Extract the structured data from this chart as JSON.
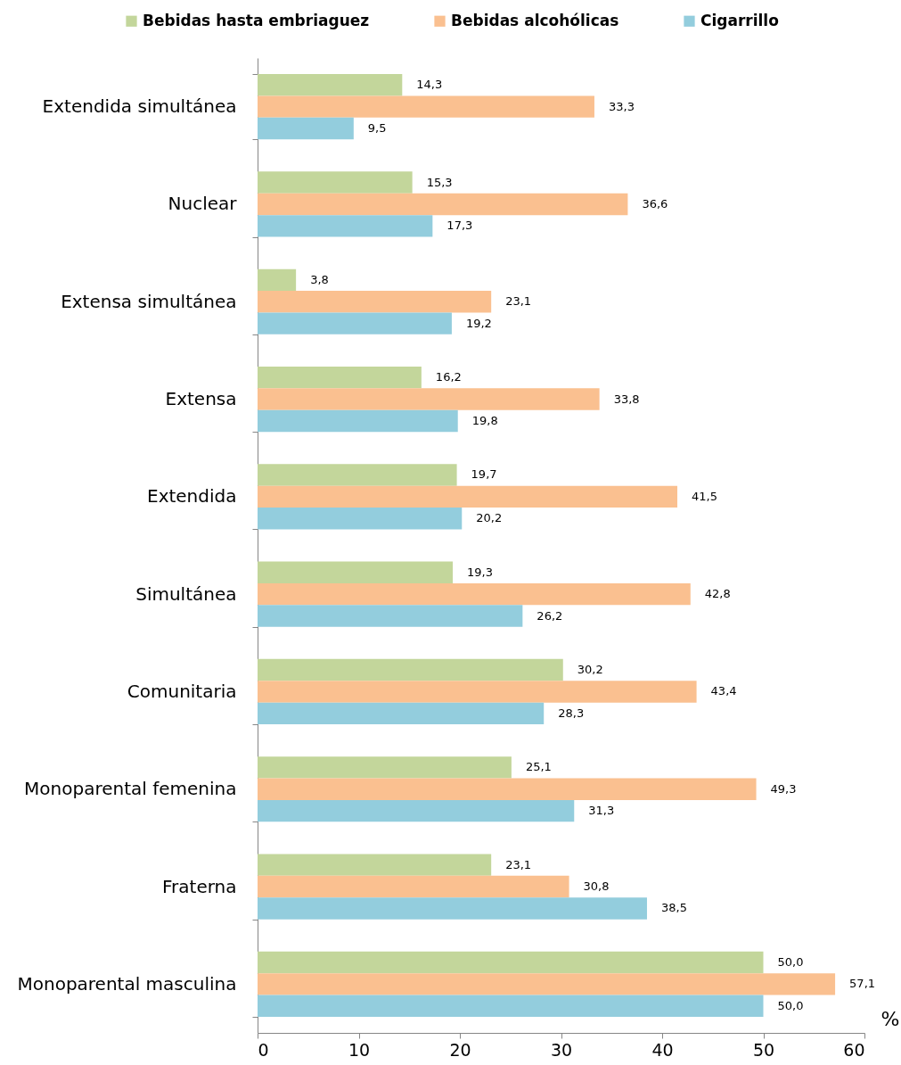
{
  "chart_data": {
    "type": "bar",
    "orientation": "horizontal",
    "categories": [
      "Extendida simultánea",
      "Nuclear",
      "Extensa simultánea",
      "Extensa",
      "Extendida",
      "Simultánea",
      "Comunitaria",
      "Monoparental femenina",
      "Fraterna",
      "Monoparental masculina"
    ],
    "series": [
      {
        "name": "Bebidas hasta embriaguez",
        "color": "#c3d69b",
        "values": [
          14.3,
          15.3,
          3.8,
          16.2,
          19.7,
          19.3,
          30.2,
          25.1,
          23.1,
          50.0
        ],
        "value_labels": [
          "14,3",
          "15,3",
          "3,8",
          "16,2",
          "19,7",
          "19,3",
          "30,2",
          "25,1",
          "23,1",
          "50,0"
        ]
      },
      {
        "name": "Bebidas alcohólicas",
        "color": "#fac090",
        "values": [
          33.3,
          36.6,
          23.1,
          33.8,
          41.5,
          42.8,
          43.4,
          49.3,
          30.8,
          57.1
        ],
        "value_labels": [
          "33,3",
          "36,6",
          "23,1",
          "33,8",
          "41,5",
          "42,8",
          "43,4",
          "49,3",
          "30,8",
          "57,1"
        ]
      },
      {
        "name": "Cigarrillo",
        "color": "#93cddd",
        "values": [
          9.5,
          17.3,
          19.2,
          19.8,
          20.2,
          26.2,
          28.3,
          31.3,
          38.5,
          50.0
        ],
        "value_labels": [
          "9,5",
          "17,3",
          "19,2",
          "19,8",
          "20,2",
          "26,2",
          "28,3",
          "31,3",
          "38,5",
          "50,0"
        ]
      }
    ],
    "xlabel": "%",
    "xlim": [
      0,
      60
    ],
    "xticks": [
      0,
      10,
      20,
      30,
      40,
      50,
      60
    ],
    "legend": "top",
    "grid": false
  }
}
